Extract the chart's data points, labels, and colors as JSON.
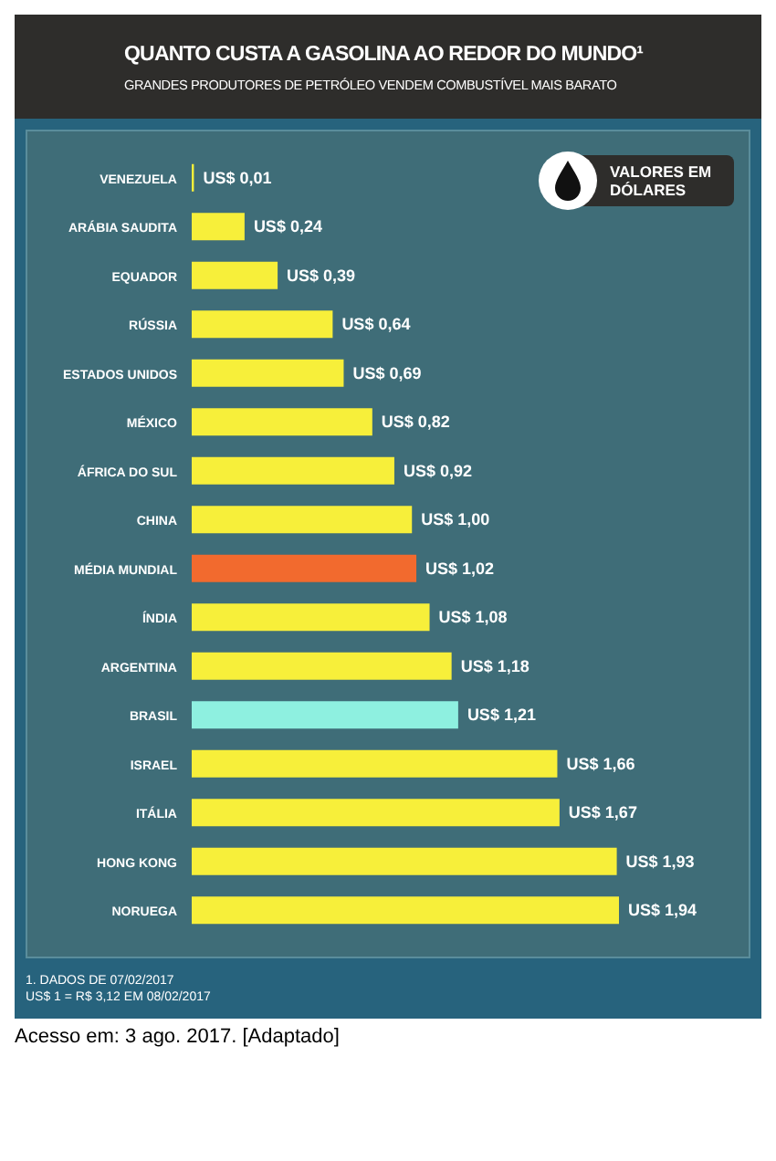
{
  "chart_data": {
    "type": "bar",
    "orientation": "horizontal",
    "title": "QUANTO CUSTA A GASOLINA AO REDOR DO MUNDO¹",
    "subtitle": "GRANDES PRODUTORES DE PETRÓLEO VENDEM COMBUSTÍVEL MAIS BARATO",
    "categories": [
      "VENEZUELA",
      "ARÁBIA SAUDITA",
      "EQUADOR",
      "RÚSSIA",
      "ESTADOS UNIDOS",
      "MÉXICO",
      "ÁFRICA DO SUL",
      "CHINA",
      "MÉDIA MUNDIAL",
      "ÍNDIA",
      "ARGENTINA",
      "BRASIL",
      "ISRAEL",
      "ITÁLIA",
      "HONG KONG",
      "NORUEGA"
    ],
    "values": [
      0.01,
      0.24,
      0.39,
      0.64,
      0.69,
      0.82,
      0.92,
      1.0,
      1.02,
      1.08,
      1.18,
      1.21,
      1.66,
      1.67,
      1.93,
      1.94
    ],
    "value_labels": [
      "US$ 0,01",
      "US$ 0,24",
      "US$ 0,39",
      "US$ 0,64",
      "US$ 0,69",
      "US$ 0,82",
      "US$ 0,92",
      "US$ 1,00",
      "US$ 1,02",
      "US$ 1,08",
      "US$ 1,18",
      "US$ 1,21",
      "US$ 1,66",
      "US$ 1,67",
      "US$ 1,93",
      "US$ 1,94"
    ],
    "colors": [
      "#f7ef3a",
      "#f7ef3a",
      "#f7ef3a",
      "#f7ef3a",
      "#f7ef3a",
      "#f7ef3a",
      "#f7ef3a",
      "#f7ef3a",
      "#f26a2e",
      "#f7ef3a",
      "#f7ef3a",
      "#8ef0e0",
      "#f7ef3a",
      "#f7ef3a",
      "#f7ef3a",
      "#f7ef3a"
    ],
    "annotations": [
      "VALORES EM DÓLARES",
      "1. DADOS DE 07/02/2017",
      "US$ 1 = R$ 3,12 EM 08/02/2017",
      "Acesso em: 3 ago. 2017. [Adaptado]"
    ],
    "grid": false,
    "legend": false
  }
}
